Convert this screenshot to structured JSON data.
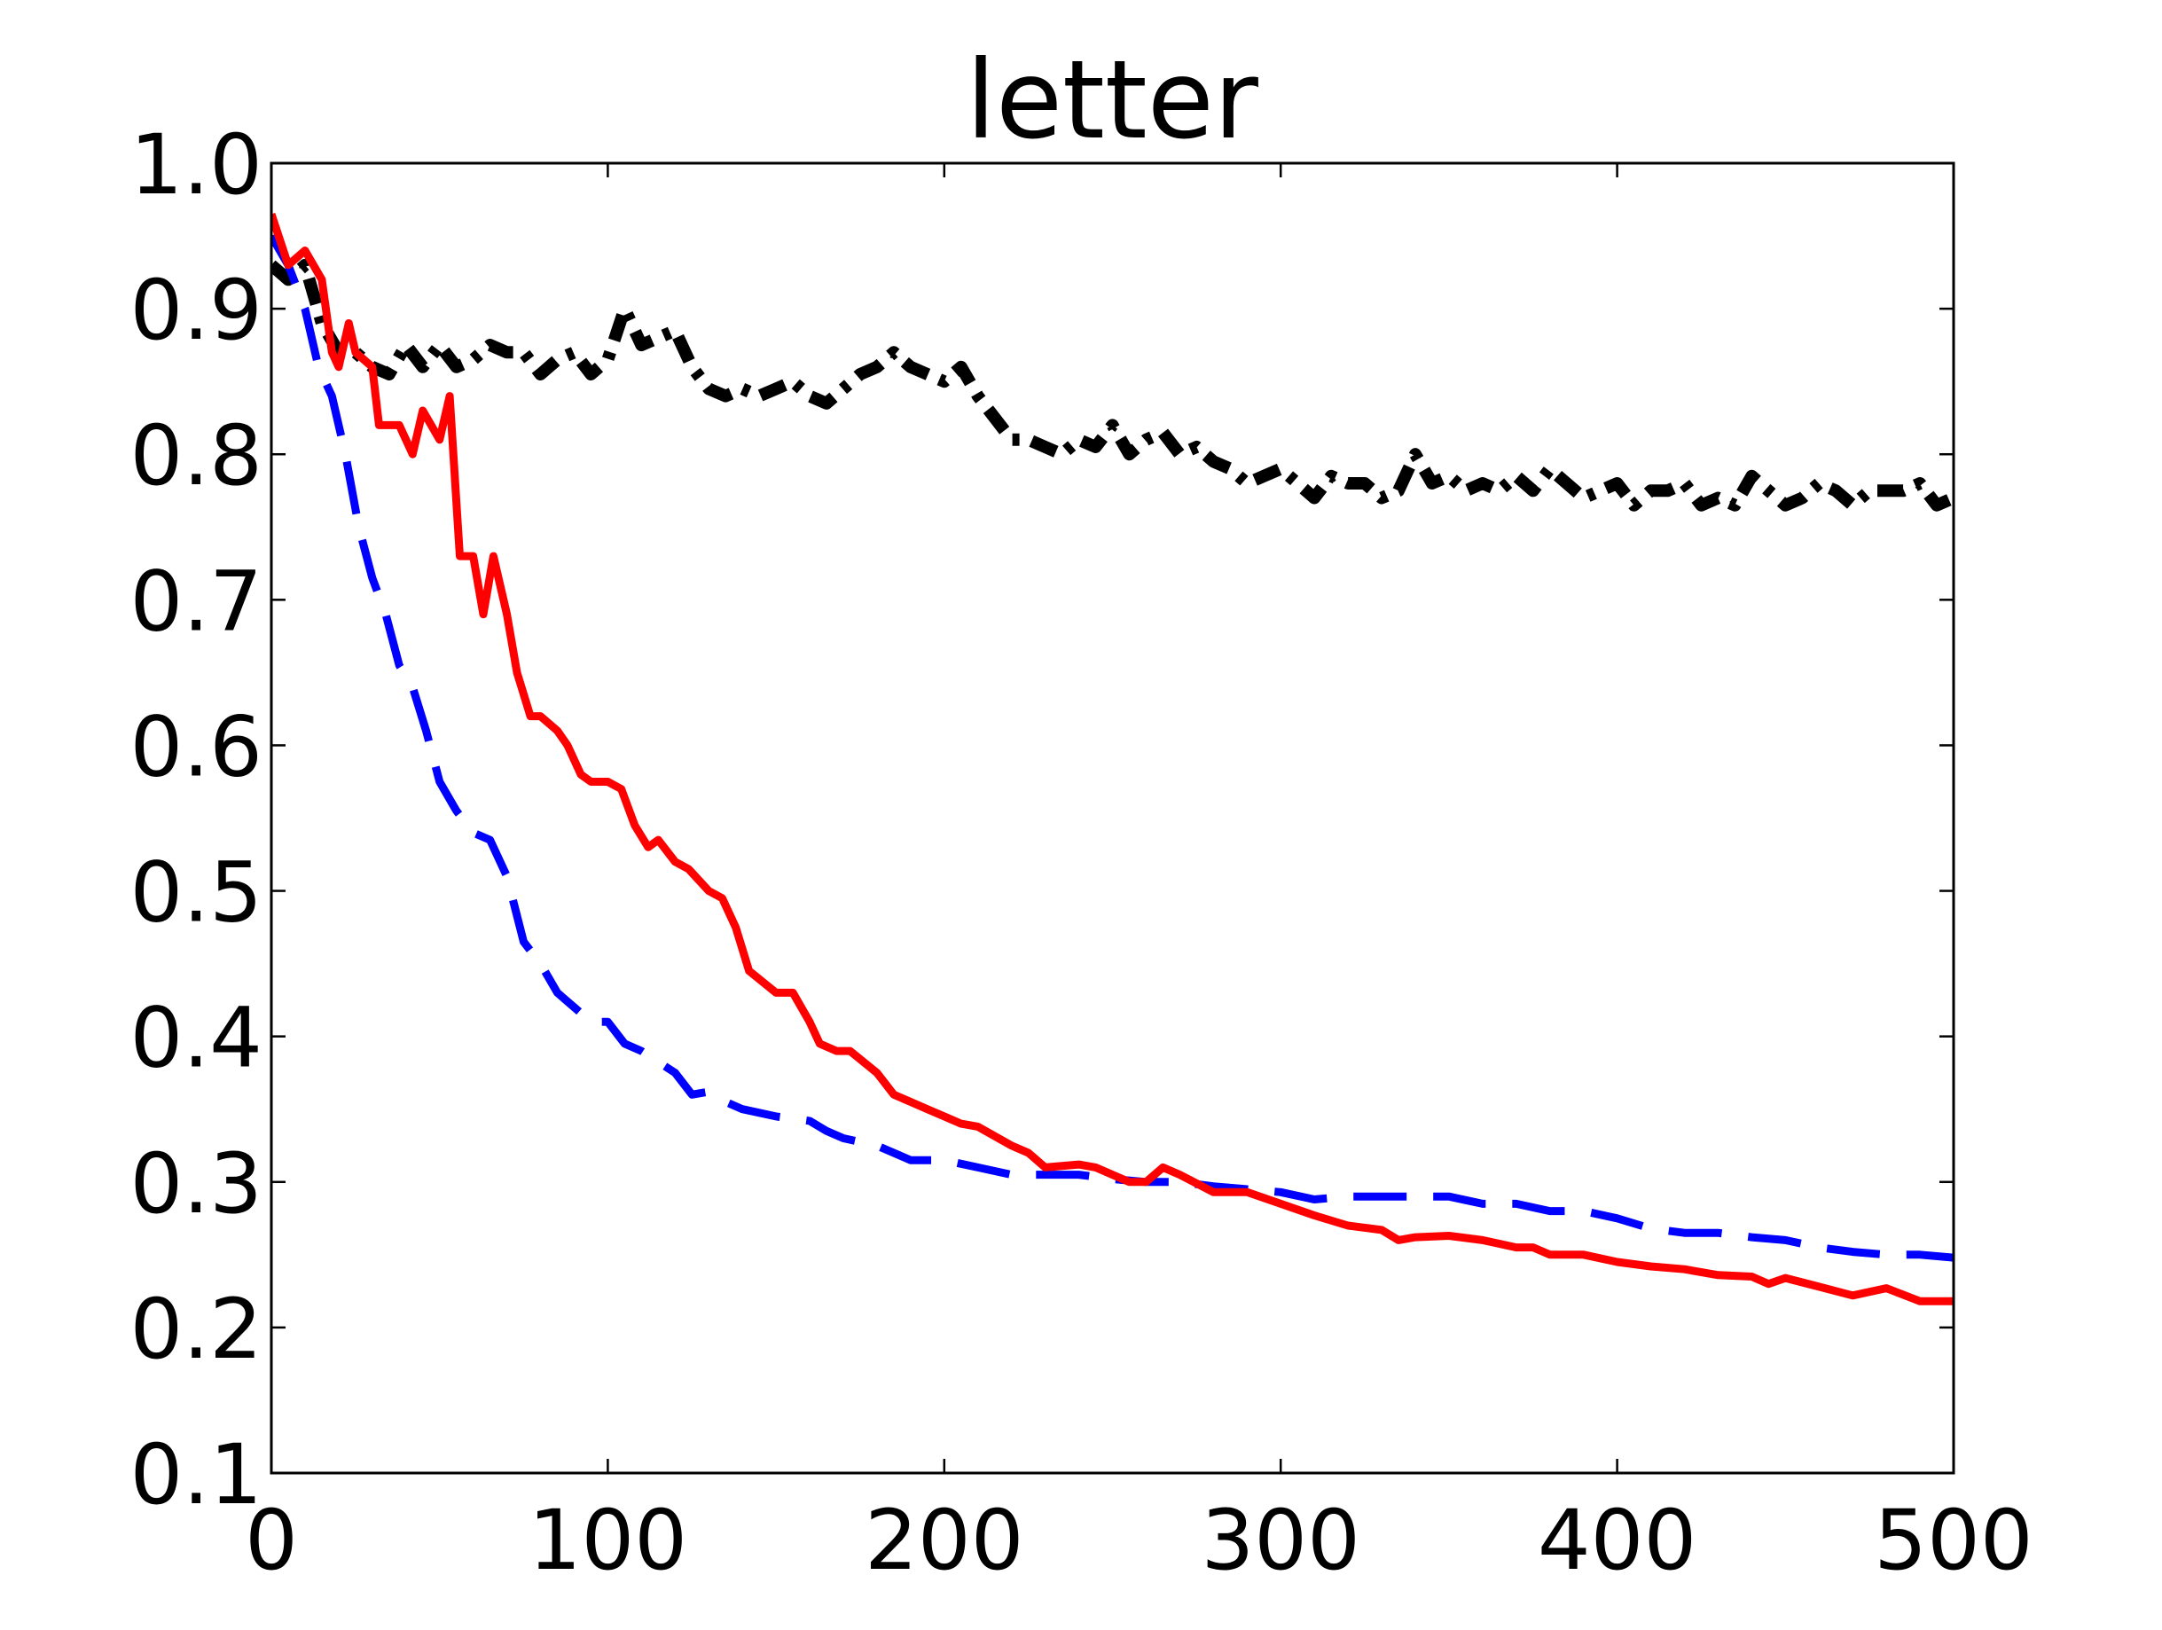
{
  "chart_data": {
    "type": "line",
    "title": "letter",
    "xlim": [
      0,
      500
    ],
    "xticks": [
      0,
      100,
      200,
      300,
      400,
      500
    ],
    "ylim": [
      0.1,
      1.0
    ],
    "yticks": [
      0.1,
      0.2,
      0.3,
      0.4,
      0.5,
      0.6,
      0.7,
      0.8,
      0.9,
      {
        "value": 1.0,
        "label": "1.0"
      }
    ],
    "grid": false,
    "series": [
      {
        "color": "#000000",
        "linestyle": "dashdot",
        "x": [
          0,
          5,
          10,
          15,
          20,
          25,
          30,
          35,
          40,
          45,
          50,
          55,
          60,
          65,
          70,
          75,
          80,
          85,
          90,
          95,
          100,
          105,
          110,
          115,
          120,
          125,
          130,
          135,
          140,
          145,
          150,
          155,
          160,
          165,
          170,
          175,
          180,
          185,
          190,
          195,
          200,
          205,
          210,
          215,
          220,
          225,
          230,
          235,
          240,
          245,
          250,
          255,
          260,
          265,
          270,
          275,
          280,
          285,
          290,
          295,
          300,
          305,
          310,
          315,
          320,
          325,
          330,
          335,
          340,
          345,
          350,
          355,
          360,
          365,
          370,
          375,
          380,
          385,
          390,
          395,
          400,
          405,
          410,
          415,
          420,
          425,
          430,
          435,
          440,
          445,
          450,
          455,
          460,
          465,
          470,
          475,
          480,
          485,
          490,
          495,
          500
        ],
        "values": [
          0.93,
          0.92,
          0.93,
          0.89,
          0.87,
          0.87,
          0.86,
          0.855,
          0.875,
          0.86,
          0.875,
          0.86,
          0.865,
          0.875,
          0.87,
          0.87,
          0.855,
          0.865,
          0.87,
          0.855,
          0.865,
          0.9,
          0.875,
          0.88,
          0.885,
          0.86,
          0.845,
          0.84,
          0.845,
          0.84,
          0.845,
          0.85,
          0.84,
          0.835,
          0.845,
          0.855,
          0.86,
          0.87,
          0.86,
          0.855,
          0.85,
          0.86,
          0.84,
          0.825,
          0.81,
          0.81,
          0.805,
          0.8,
          0.81,
          0.805,
          0.82,
          0.8,
          0.81,
          0.815,
          0.8,
          0.805,
          0.795,
          0.79,
          0.78,
          0.785,
          0.79,
          0.78,
          0.77,
          0.785,
          0.78,
          0.78,
          0.77,
          0.775,
          0.8,
          0.78,
          0.785,
          0.775,
          0.78,
          0.775,
          0.785,
          0.775,
          0.79,
          0.78,
          0.77,
          0.775,
          0.78,
          0.765,
          0.775,
          0.775,
          0.78,
          0.765,
          0.77,
          0.765,
          0.785,
          0.775,
          0.765,
          0.77,
          0.78,
          0.775,
          0.765,
          0.775,
          0.775,
          0.775,
          0.78,
          0.765,
          0.77
        ]
      },
      {
        "color": "#0000ff",
        "linestyle": "dashed",
        "x": [
          0,
          5,
          10,
          14,
          18,
          22,
          26,
          30,
          34,
          38,
          42,
          46,
          50,
          55,
          60,
          65,
          70,
          75,
          80,
          85,
          90,
          95,
          100,
          105,
          110,
          120,
          125,
          130,
          135,
          140,
          150,
          160,
          165,
          170,
          180,
          185,
          190,
          200,
          210,
          220,
          230,
          240,
          250,
          260,
          270,
          280,
          290,
          300,
          310,
          320,
          330,
          340,
          350,
          360,
          370,
          380,
          390,
          400,
          410,
          420,
          430,
          440,
          450,
          460,
          470,
          480,
          490,
          500
        ],
        "values": [
          0.95,
          0.93,
          0.9,
          0.86,
          0.84,
          0.8,
          0.75,
          0.715,
          0.69,
          0.655,
          0.64,
          0.61,
          0.575,
          0.555,
          0.54,
          0.535,
          0.51,
          0.465,
          0.45,
          0.43,
          0.42,
          0.41,
          0.41,
          0.395,
          0.39,
          0.375,
          0.36,
          0.362,
          0.355,
          0.35,
          0.345,
          0.342,
          0.335,
          0.33,
          0.325,
          0.32,
          0.315,
          0.315,
          0.31,
          0.305,
          0.305,
          0.305,
          0.302,
          0.3,
          0.3,
          0.297,
          0.295,
          0.293,
          0.288,
          0.29,
          0.29,
          0.29,
          0.29,
          0.285,
          0.285,
          0.28,
          0.28,
          0.275,
          0.268,
          0.265,
          0.265,
          0.262,
          0.26,
          0.255,
          0.252,
          0.25,
          0.25,
          0.248
        ]
      },
      {
        "color": "#ff0000",
        "linestyle": "solid",
        "x": [
          0,
          5,
          10,
          15,
          18,
          20,
          23,
          25,
          30,
          32,
          38,
          42,
          45,
          50,
          53,
          56,
          60,
          63,
          66,
          70,
          73,
          77,
          80,
          85,
          88,
          92,
          95,
          100,
          104,
          108,
          112,
          115,
          120,
          124,
          130,
          134,
          138,
          142,
          150,
          155,
          160,
          163,
          168,
          172,
          180,
          185,
          190,
          195,
          200,
          205,
          210,
          220,
          225,
          230,
          240,
          245,
          250,
          255,
          260,
          265,
          270,
          280,
          290,
          300,
          310,
          320,
          330,
          335,
          340,
          350,
          360,
          370,
          375,
          380,
          390,
          400,
          410,
          420,
          430,
          440,
          445,
          450,
          460,
          470,
          480,
          490,
          500
        ],
        "values": [
          0.965,
          0.93,
          0.94,
          0.92,
          0.87,
          0.86,
          0.89,
          0.87,
          0.86,
          0.82,
          0.82,
          0.8,
          0.83,
          0.81,
          0.84,
          0.73,
          0.73,
          0.69,
          0.73,
          0.69,
          0.65,
          0.62,
          0.62,
          0.61,
          0.6,
          0.58,
          0.575,
          0.575,
          0.57,
          0.545,
          0.53,
          0.535,
          0.52,
          0.515,
          0.5,
          0.495,
          0.475,
          0.445,
          0.43,
          0.43,
          0.41,
          0.395,
          0.39,
          0.39,
          0.375,
          0.36,
          0.355,
          0.35,
          0.345,
          0.34,
          0.338,
          0.325,
          0.32,
          0.31,
          0.312,
          0.31,
          0.305,
          0.3,
          0.3,
          0.31,
          0.305,
          0.293,
          0.293,
          0.285,
          0.277,
          0.27,
          0.267,
          0.26,
          0.262,
          0.263,
          0.26,
          0.255,
          0.255,
          0.25,
          0.25,
          0.245,
          0.242,
          0.24,
          0.236,
          0.235,
          0.23,
          0.234,
          0.228,
          0.222,
          0.227,
          0.218,
          0.218
        ]
      }
    ]
  }
}
